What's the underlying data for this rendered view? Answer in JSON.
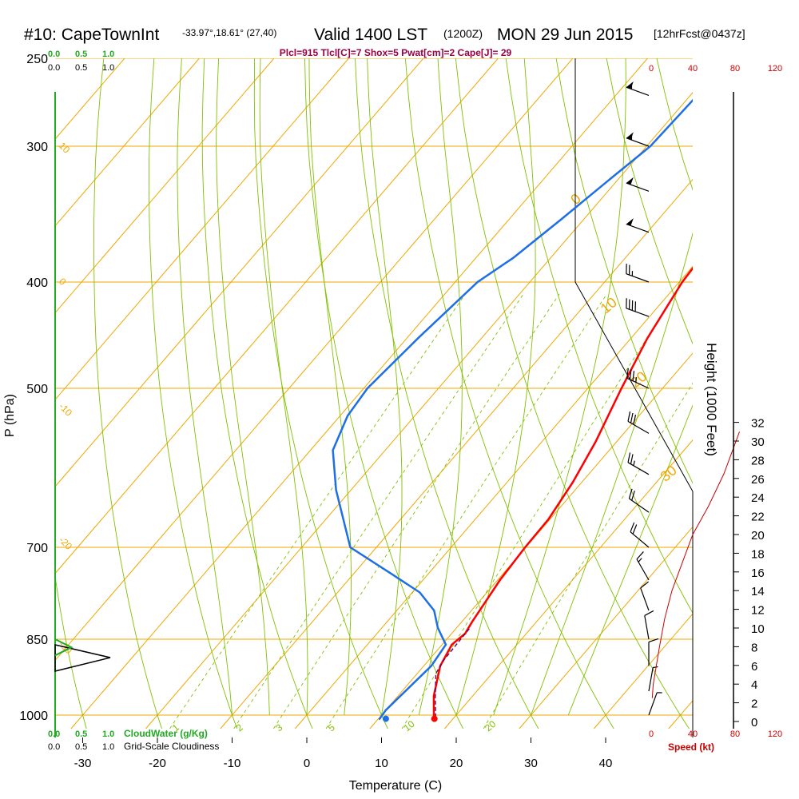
{
  "header": {
    "station": "#10: CapeTownInt",
    "coords": "-33.97°,18.61° (27,40)",
    "valid": "Valid 1400 LST",
    "zulu": "(1200Z)",
    "date": "MON 29 Jun 2015",
    "forecast": "[12hrFcst@0437z]",
    "params": "Plcl=915 Tlcl[C]=7 Shox=5 Pwat[cm]=2 Cape[J]= 29"
  },
  "top_scales": {
    "cloud_water": [
      "0.0",
      "0.5",
      "1.0"
    ],
    "cloudiness": [
      "0.0",
      "0.5",
      "1.0"
    ]
  },
  "bottom_scales": {
    "cloud_water": [
      "0.0",
      "0.5",
      "1.0"
    ],
    "cloud_water_label": "CloudWater (g/Kg)",
    "cloudiness": [
      "0.0",
      "0.5",
      "1.0"
    ],
    "cloudiness_label": "Grid-Scale Cloudiness"
  },
  "speed_scale": {
    "ticks": [
      "0",
      "40",
      "80",
      "120"
    ],
    "label": "Speed (kt)"
  },
  "colors": {
    "temperature": "#ff0000",
    "dewpoint": "#1e6fe6",
    "isotherm": "#f0a800",
    "adiabat": "#80c000",
    "mixing_ratio": "#80c000",
    "cloud": "#22aa22",
    "params": "#990044",
    "speed": "#cc0000"
  },
  "chart_data": {
    "type": "line",
    "title": "#10: CapeTownInt -33.97°,18.61° (27,40) Valid 1400 LST (1200Z) MON 29 Jun 2015 [12hrFcst@0437z]",
    "xlabel": "Temperature (C)",
    "ylabel": "P (hPa)",
    "y2label": "Height (1000 Feet)",
    "x_ticks": [
      -30,
      -20,
      -10,
      0,
      10,
      20,
      30,
      40
    ],
    "p_ticks": [
      250,
      300,
      400,
      500,
      700,
      850,
      1000
    ],
    "height_ticks": [
      0,
      2,
      4,
      6,
      8,
      10,
      12,
      14,
      16,
      18,
      20,
      22,
      24,
      26,
      28,
      30,
      32
    ],
    "isotherm_labels": [
      {
        "label": "10",
        "t": 10,
        "p": 300
      },
      {
        "label": "0",
        "t": 0,
        "p": 400
      },
      {
        "label": "-10",
        "t": -10,
        "p": 520
      },
      {
        "label": "-20",
        "t": -20,
        "p": 690
      },
      {
        "label": "-30",
        "t": -30,
        "p": 860
      }
    ],
    "adiabat_labels": [
      {
        "label": "0",
        "x_t": 36,
        "p": 340
      },
      {
        "label": "10",
        "x_t": 40,
        "p": 428
      },
      {
        "label": "20",
        "x_t": 44,
        "p": 500
      },
      {
        "label": "30",
        "x_t": 48,
        "p": 610
      }
    ],
    "mixing_ratio_labels": [
      "1",
      "2",
      "3",
      "5",
      "10",
      "20"
    ],
    "series": [
      {
        "name": "Temperature",
        "points": [
          [
            -2.0,
            265
          ],
          [
            -1.3,
            300
          ],
          [
            -0.6,
            340
          ],
          [
            0.4,
            400
          ],
          [
            2.2,
            450
          ],
          [
            4.5,
            500
          ],
          [
            7.2,
            560
          ],
          [
            8.8,
            610
          ],
          [
            9.8,
            660
          ],
          [
            9.9,
            700
          ],
          [
            10.3,
            750
          ],
          [
            11.4,
            820
          ],
          [
            11.8,
            840
          ],
          [
            11.3,
            860
          ],
          [
            12.2,
            900
          ],
          [
            14.8,
            960
          ],
          [
            17.0,
            1000
          ],
          [
            17.5,
            1010
          ]
        ]
      },
      {
        "name": "Dewpoint",
        "points": [
          [
            -19.0,
            265
          ],
          [
            -19.5,
            300
          ],
          [
            -21.0,
            320
          ],
          [
            -23.0,
            350
          ],
          [
            -25.0,
            380
          ],
          [
            -27.0,
            400
          ],
          [
            -28.5,
            450
          ],
          [
            -29.5,
            500
          ],
          [
            -29.0,
            530
          ],
          [
            -27.0,
            570
          ],
          [
            -22.0,
            620
          ],
          [
            -13.5,
            700
          ],
          [
            -5.0,
            740
          ],
          [
            1.0,
            770
          ],
          [
            5.0,
            800
          ],
          [
            7.5,
            830
          ],
          [
            10.5,
            860
          ],
          [
            11.0,
            900
          ],
          [
            10.0,
            990
          ],
          [
            10.2,
            1010
          ]
        ]
      },
      {
        "name": "Parcel",
        "points": [
          [
            17.5,
            1005
          ],
          [
            15.0,
            960
          ],
          [
            12.5,
            915
          ],
          [
            12.0,
            890
          ],
          [
            11.9,
            860
          ],
          [
            11.8,
            830
          ]
        ]
      }
    ],
    "surface": {
      "temperature": 17.5,
      "dewpoint": 11.0,
      "p": 1008
    },
    "wind_profile": [
      {
        "p": 270,
        "speed": 55,
        "dir": 290
      },
      {
        "p": 300,
        "speed": 55,
        "dir": 290
      },
      {
        "p": 330,
        "speed": 50,
        "dir": 290
      },
      {
        "p": 360,
        "speed": 50,
        "dir": 290
      },
      {
        "p": 400,
        "speed": 25,
        "dir": 290
      },
      {
        "p": 430,
        "speed": 40,
        "dir": 290
      },
      {
        "p": 500,
        "speed": 35,
        "dir": 295
      },
      {
        "p": 550,
        "speed": 30,
        "dir": 300
      },
      {
        "p": 600,
        "speed": 25,
        "dir": 300
      },
      {
        "p": 650,
        "speed": 20,
        "dir": 305
      },
      {
        "p": 700,
        "speed": 20,
        "dir": 310
      },
      {
        "p": 750,
        "speed": 15,
        "dir": 330
      },
      {
        "p": 800,
        "speed": 10,
        "dir": 340
      },
      {
        "p": 850,
        "speed": 10,
        "dir": 350
      },
      {
        "p": 900,
        "speed": 10,
        "dir": 360
      },
      {
        "p": 950,
        "speed": 8,
        "dir": 10
      },
      {
        "p": 1000,
        "speed": 5,
        "dir": 20
      }
    ],
    "wind_speed_profile": [
      {
        "kt": 85,
        "ft": 31
      },
      {
        "kt": 80,
        "ft": 29.5
      },
      {
        "kt": 70,
        "ft": 26.5
      },
      {
        "kt": 55,
        "ft": 23
      },
      {
        "kt": 40,
        "ft": 20
      },
      {
        "kt": 30,
        "ft": 17
      },
      {
        "kt": 20,
        "ft": 14
      },
      {
        "kt": 13,
        "ft": 11
      },
      {
        "kt": 8,
        "ft": 8
      },
      {
        "kt": 5,
        "ft": 6
      },
      {
        "kt": 2,
        "ft": 4
      },
      {
        "kt": 1,
        "ft": 2.5
      }
    ],
    "cloud_profile": [
      {
        "p": 845,
        "cloudiness": 1.0
      },
      {
        "p": 865,
        "cloudiness": 0.95
      },
      {
        "p": 875,
        "cloudiness": 0.5
      },
      {
        "p": 885,
        "cloudiness": 0.0
      }
    ],
    "cloud_water_profile": [
      {
        "p": 850,
        "value": 0.0
      },
      {
        "p": 865,
        "value": 0.3
      },
      {
        "p": 880,
        "value": 0.0
      }
    ]
  }
}
